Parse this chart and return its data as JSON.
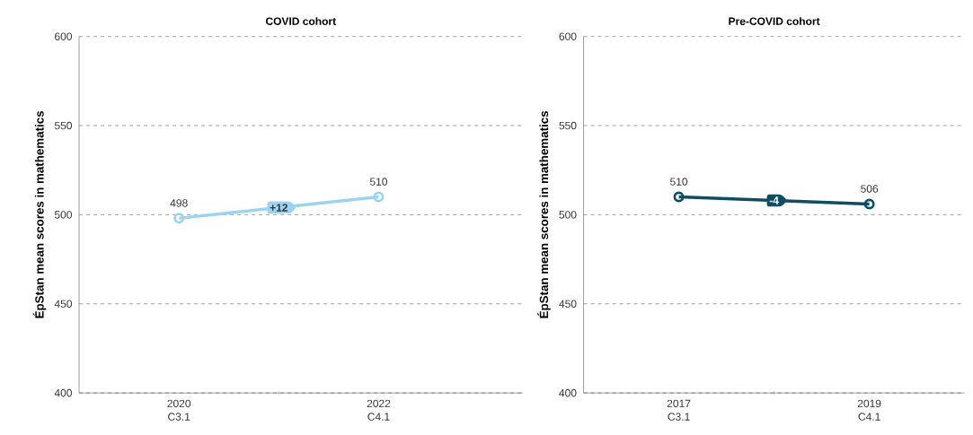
{
  "chart_data": [
    {
      "type": "line",
      "title": "COVID cohort",
      "ylabel": "ÉpStan mean scores in mathematics",
      "categories": [
        "2020\nC3.1",
        "2022\nC4.1"
      ],
      "series": [
        {
          "color": "#9dd3f0",
          "values": [
            498,
            510
          ]
        }
      ],
      "ylim": [
        400,
        600
      ],
      "yticks": [
        400,
        450,
        500,
        550,
        600
      ],
      "grid": "y",
      "marker": "circle",
      "data_labels": true,
      "annotations": [
        "+12"
      ]
    },
    {
      "type": "line",
      "title": "Pre-COVID cohort",
      "ylabel": "ÉpStan mean scores in mathematics",
      "categories": [
        "2017\nC3.1",
        "2019\nC4.1"
      ],
      "series": [
        {
          "color": "#0e4d64",
          "values": [
            510,
            506
          ]
        }
      ],
      "ylim": [
        400,
        600
      ],
      "yticks": [
        400,
        450,
        500,
        550,
        600
      ],
      "grid": "y",
      "marker": "circle",
      "data_labels": true,
      "annotations": [
        "-4"
      ]
    }
  ]
}
